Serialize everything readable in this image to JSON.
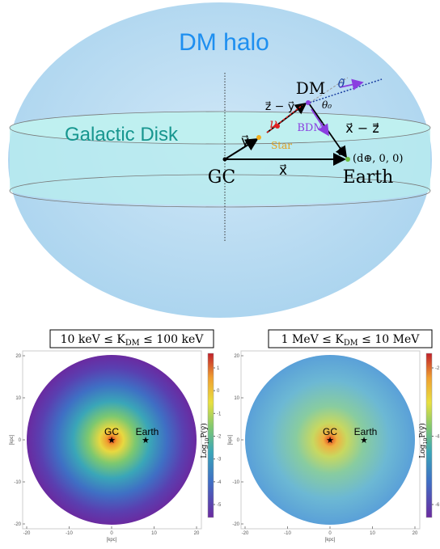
{
  "diagram": {
    "halo_label": "DM halo",
    "disk_label": "Galactic Disk",
    "gc": "GC",
    "earth": "Earth",
    "dm": "DM",
    "x_vec": "x⃗",
    "y_vec": "y⃗",
    "z_minus_y": "z⃗ − y⃗",
    "nu": "ν",
    "star": "Star",
    "bdm": "BDM",
    "x_minus_z": "x⃗ − z⃗",
    "theta": "θ",
    "theta0": "θ₀",
    "theta_tilde": "θ̃",
    "earth_coords": "(d⊕, 0, 0)"
  },
  "panels": [
    {
      "title": {
        "pre": "10 keV ≤ K",
        "sub": "DM",
        "post": " ≤ 100 keV"
      },
      "xticks": [
        -20,
        -10,
        0,
        10,
        20
      ],
      "yticks": [
        -20,
        -10,
        0,
        10,
        20
      ],
      "xlabel": "[kpc]",
      "ylabel": "[kpc]",
      "gc": "GC",
      "earth": "Earth",
      "colorbar_label": {
        "pre": "Log",
        "sub": "10",
        "post": "P(y⃗)"
      },
      "colorbar_ticks": [
        1,
        0,
        -1,
        -2,
        -3,
        -4,
        -5
      ]
    },
    {
      "title": {
        "pre": "1 MeV ≤ K",
        "sub": "DM",
        "post": " ≤ 10 MeV"
      },
      "xticks": [
        -20,
        -10,
        0,
        10,
        20
      ],
      "yticks": [
        -20,
        -10,
        0,
        10,
        20
      ],
      "xlabel": "[kpc]",
      "ylabel": "[kpc]",
      "gc": "GC",
      "earth": "Earth",
      "colorbar_label": {
        "pre": "Log",
        "sub": "10",
        "post": "P(y⃗)"
      },
      "colorbar_ticks": [
        -2,
        -4,
        -6
      ]
    }
  ]
}
